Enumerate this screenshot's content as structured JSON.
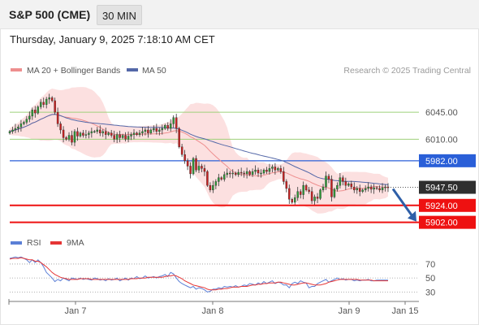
{
  "header": {
    "title": "S&P 500 (CME)",
    "timeframe": "30 MIN"
  },
  "timestamp": "Thursday, January 9, 2025 7:18:10 AM CET",
  "legend": {
    "ma20_bb": "MA 20 + Bollinger Bands",
    "ma50": "MA 50",
    "credit": "Research © 2025 Trading Central"
  },
  "colors": {
    "up": "#2e9d38",
    "down": "#cc1f1f",
    "ma20": "#ee8f8f",
    "ma50": "#5468a8",
    "bands": "#fbd5d5",
    "resistance": "#9ed07a",
    "pivot": "#2a5fd8",
    "support": "#ee1111",
    "rsi": "#5b7fd6",
    "rsi_ma": "#e53535",
    "arrow": "#2e5fa8"
  },
  "chart_data": [
    {
      "type": "candlestick",
      "x_ticks": [
        "Jan 7",
        "Jan 8",
        "Jan 9",
        "Jan 15"
      ],
      "ylim": [
        5890,
        6080
      ],
      "last_price": "5947.50",
      "levels": [
        {
          "label": "6045.00",
          "value": 6045,
          "kind": "resistance"
        },
        {
          "label": "6010.00",
          "value": 6010,
          "kind": "resistance"
        },
        {
          "label": "5982.00",
          "value": 5982,
          "kind": "pivot"
        },
        {
          "label": "5924.00",
          "value": 5924,
          "kind": "support"
        },
        {
          "label": "5902.00",
          "value": 5902,
          "kind": "support"
        }
      ],
      "close": [
        6020,
        6022,
        6024,
        6026,
        6030,
        6032,
        6036,
        6040,
        6048,
        6044,
        6052,
        6058,
        6055,
        6062,
        6064,
        6060,
        6045,
        6030,
        6022,
        6012,
        6010,
        6015,
        6006,
        6020,
        6014,
        6018,
        6015,
        6016,
        6018,
        6020,
        6020,
        6022,
        6018,
        6020,
        6016,
        6018,
        6015,
        6010,
        6016,
        6012,
        6015,
        6010,
        6014,
        6016,
        6018,
        6016,
        6018,
        6020,
        6022,
        6018,
        6022,
        6024,
        6020,
        6022,
        6024,
        6028,
        6024,
        6030,
        6038,
        6024,
        6000,
        5990,
        5982,
        5975,
        5965,
        5985,
        5970,
        5975,
        5972,
        5968,
        5950,
        5944,
        5950,
        5955,
        5960,
        5958,
        5964,
        5966,
        5965,
        5966,
        5964,
        5967,
        5966,
        5965,
        5968,
        5964,
        5968,
        5970,
        5966,
        5966,
        5970,
        5968,
        5972,
        5974,
        5970,
        5972,
        5968,
        5955,
        5946,
        5932,
        5928,
        5934,
        5942,
        5938,
        5950,
        5944,
        5942,
        5930,
        5935,
        5933,
        5944,
        5948,
        5962,
        5958,
        5935,
        5945,
        5950,
        5960,
        5955,
        5950,
        5952,
        5948,
        5944,
        5946,
        5942,
        5944,
        5946,
        5948,
        5945,
        5947,
        5946,
        5944,
        5947,
        5948,
        5947.5
      ],
      "rsi": {
        "ticks": [
          "70",
          "50",
          "30"
        ],
        "ylim": [
          20,
          85
        ],
        "values": [
          78,
          79,
          80,
          79,
          80,
          78,
          76,
          72,
          76,
          72,
          76,
          72,
          66,
          58,
          54,
          50,
          45,
          48,
          46,
          50,
          48,
          46,
          50,
          49,
          48,
          50,
          48,
          49,
          48,
          47,
          50,
          49,
          47,
          48,
          46,
          49,
          47,
          48,
          50,
          46,
          48,
          50,
          47,
          50,
          49,
          52,
          49,
          50,
          53,
          50,
          51,
          52,
          50,
          52,
          53,
          55,
          52,
          58,
          56,
          50,
          45,
          42,
          40,
          38,
          36,
          38,
          34,
          36,
          35,
          33,
          30,
          31,
          34,
          34,
          36,
          35,
          38,
          37,
          38,
          37,
          39,
          37,
          38,
          40,
          39,
          42,
          41,
          40,
          43,
          41,
          45,
          42,
          44,
          46,
          42,
          44,
          43,
          40,
          40,
          36,
          42,
          44,
          42,
          46,
          44,
          43,
          36,
          38,
          38,
          42,
          44,
          46,
          48,
          44,
          46,
          48,
          50,
          48,
          49,
          47,
          48,
          48,
          46,
          47,
          46,
          47,
          47,
          48,
          46,
          46,
          47,
          47,
          47,
          47,
          47
        ],
        "ma_values": [
          77,
          78,
          78,
          78,
          79,
          78,
          77,
          76,
          76,
          74,
          74,
          72,
          69,
          66,
          62,
          58,
          55,
          53,
          51,
          50,
          49,
          48,
          48,
          48,
          48,
          49,
          49,
          49,
          49,
          48,
          48,
          48,
          48,
          48,
          48,
          48,
          48,
          48,
          48,
          48,
          48,
          48,
          48,
          49,
          49,
          49,
          50,
          50,
          50,
          51,
          51,
          51,
          51,
          51,
          51,
          52,
          53,
          53,
          54,
          53,
          51,
          49,
          46,
          44,
          42,
          40,
          39,
          38,
          37,
          36,
          34,
          33,
          33,
          33,
          34,
          34,
          35,
          35,
          36,
          37,
          37,
          37,
          38,
          38,
          38,
          39,
          40,
          40,
          41,
          41,
          42,
          42,
          43,
          43,
          43,
          44,
          44,
          43,
          42,
          41,
          40,
          40,
          41,
          42,
          43,
          43,
          42,
          41,
          40,
          40,
          40,
          41,
          42,
          44,
          45,
          46,
          47,
          48,
          48,
          48,
          48,
          48,
          48,
          48,
          47,
          47,
          47,
          47,
          47,
          46,
          46,
          46,
          46,
          46,
          46
        ]
      }
    }
  ],
  "rsi_legend": {
    "rsi": "RSI",
    "ma": "9MA"
  }
}
